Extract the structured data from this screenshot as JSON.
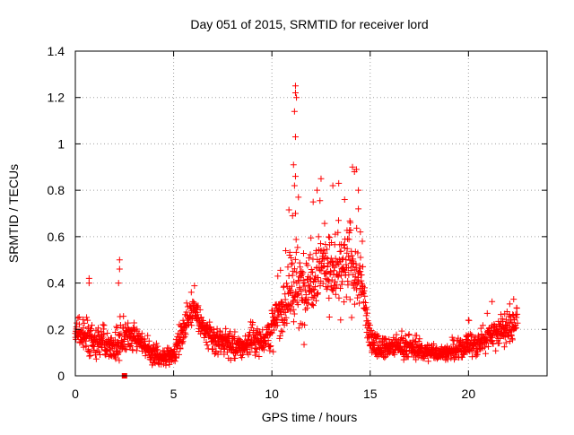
{
  "chart_data": {
    "type": "scatter",
    "title": "Day 051 of 2015, SRMTID for receiver lord",
    "xlabel": "GPS time / hours",
    "ylabel": "SRMTID / TECUs",
    "xlim": [
      0,
      24
    ],
    "ylim": [
      0,
      1.4
    ],
    "x_ticks": [
      0,
      5,
      10,
      15,
      20
    ],
    "x_tick_labels": [
      "0",
      "5",
      "10",
      "15",
      "20"
    ],
    "y_ticks": [
      0,
      0.2,
      0.4,
      0.6,
      0.8,
      1.0,
      1.2,
      1.4
    ],
    "y_tick_labels": [
      "0",
      "0.2",
      "0.4",
      "0.6",
      "0.8",
      "1",
      "1.2",
      "1.4"
    ],
    "grid": true,
    "marker": "plus",
    "series_color": "#ff0000",
    "profile": {
      "x": [
        0,
        0.5,
        1,
        1.5,
        2,
        2.5,
        3,
        3.5,
        4,
        4.5,
        5,
        5.5,
        6,
        6.5,
        7,
        7.5,
        8,
        8.5,
        9,
        9.5,
        10,
        10.5,
        11,
        11.5,
        12,
        12.5,
        13,
        13.5,
        14,
        14.5,
        15,
        15.5,
        16,
        16.5,
        17,
        17.5,
        18,
        18.5,
        19,
        19.5,
        20,
        20.5,
        21,
        21.5,
        22,
        22.5
      ],
      "y": [
        0.19,
        0.16,
        0.14,
        0.15,
        0.12,
        0.18,
        0.17,
        0.13,
        0.09,
        0.08,
        0.09,
        0.2,
        0.3,
        0.2,
        0.15,
        0.15,
        0.13,
        0.12,
        0.16,
        0.15,
        0.2,
        0.29,
        0.38,
        0.36,
        0.42,
        0.5,
        0.45,
        0.44,
        0.48,
        0.42,
        0.15,
        0.13,
        0.12,
        0.13,
        0.12,
        0.11,
        0.1,
        0.1,
        0.1,
        0.11,
        0.14,
        0.13,
        0.18,
        0.19,
        0.2,
        0.24
      ]
    },
    "spread": [
      0.06,
      0.06,
      0.06,
      0.05,
      0.05,
      0.08,
      0.05,
      0.04,
      0.04,
      0.03,
      0.03,
      0.06,
      0.05,
      0.06,
      0.05,
      0.05,
      0.05,
      0.04,
      0.05,
      0.05,
      0.08,
      0.1,
      0.18,
      0.15,
      0.14,
      0.14,
      0.13,
      0.14,
      0.18,
      0.12,
      0.05,
      0.04,
      0.04,
      0.04,
      0.04,
      0.04,
      0.03,
      0.03,
      0.03,
      0.04,
      0.05,
      0.05,
      0.06,
      0.06,
      0.07,
      0.07
    ],
    "outliers": [
      {
        "x": 0.7,
        "y": 0.42
      },
      {
        "x": 0.7,
        "y": 0.4
      },
      {
        "x": 2.25,
        "y": 0.5
      },
      {
        "x": 2.25,
        "y": 0.46
      },
      {
        "x": 2.2,
        "y": 0.4
      },
      {
        "x": 5.9,
        "y": 0.36
      },
      {
        "x": 11.2,
        "y": 1.25
      },
      {
        "x": 11.2,
        "y": 1.22
      },
      {
        "x": 11.25,
        "y": 1.2
      },
      {
        "x": 11.15,
        "y": 1.14
      },
      {
        "x": 11.2,
        "y": 1.03
      },
      {
        "x": 11.1,
        "y": 0.91
      },
      {
        "x": 11.2,
        "y": 0.86
      },
      {
        "x": 11.15,
        "y": 0.82
      },
      {
        "x": 11.35,
        "y": 0.77
      },
      {
        "x": 11.2,
        "y": 0.7
      },
      {
        "x": 11.05,
        "y": 0.69
      },
      {
        "x": 12.5,
        "y": 0.85
      },
      {
        "x": 13.1,
        "y": 0.82
      },
      {
        "x": 13.4,
        "y": 0.83
      },
      {
        "x": 13.7,
        "y": 0.76
      },
      {
        "x": 14.1,
        "y": 0.9
      },
      {
        "x": 14.2,
        "y": 0.88
      },
      {
        "x": 14.3,
        "y": 0.89
      },
      {
        "x": 14.4,
        "y": 0.8
      },
      {
        "x": 14.4,
        "y": 0.72
      },
      {
        "x": 14.5,
        "y": 0.62
      },
      {
        "x": 14.6,
        "y": 0.58
      },
      {
        "x": 12.1,
        "y": 0.75
      },
      {
        "x": 12.3,
        "y": 0.8
      },
      {
        "x": 20.0,
        "y": 0.24
      },
      {
        "x": 21.2,
        "y": 0.32
      },
      {
        "x": 22.3,
        "y": 0.33
      },
      {
        "x": 22.1,
        "y": 0.31
      },
      {
        "x": 10.3,
        "y": 0.43
      },
      {
        "x": 10.9,
        "y": 0.52
      }
    ],
    "square_markers": [
      {
        "x": 2.5,
        "y": 0.0
      }
    ]
  }
}
